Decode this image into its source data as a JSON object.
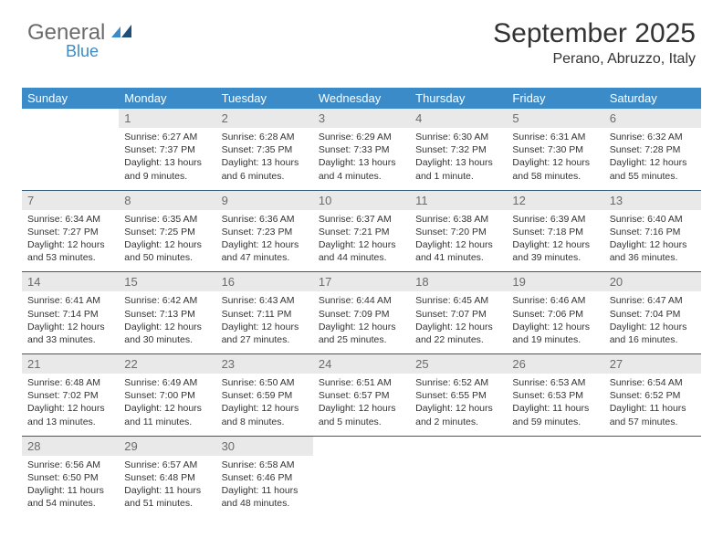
{
  "brand": {
    "main": "General",
    "sub": "Blue"
  },
  "title": "September 2025",
  "location": "Perano, Abruzzo, Italy",
  "colors": {
    "header_bg": "#3b8bc9",
    "header_text": "#ffffff",
    "daynum_bg": "#e9e9e9",
    "daynum_text": "#6b6b6b",
    "body_text": "#333333",
    "separator": "#355a7a",
    "logo_gray": "#6b6b6b",
    "logo_blue": "#3b8bc9"
  },
  "day_names": [
    "Sunday",
    "Monday",
    "Tuesday",
    "Wednesday",
    "Thursday",
    "Friday",
    "Saturday"
  ],
  "weeks": [
    {
      "nums": [
        "",
        "1",
        "2",
        "3",
        "4",
        "5",
        "6"
      ],
      "cells": [
        {
          "empty": true
        },
        {
          "sunrise": "Sunrise: 6:27 AM",
          "sunset": "Sunset: 7:37 PM",
          "day1": "Daylight: 13 hours",
          "day2": "and 9 minutes."
        },
        {
          "sunrise": "Sunrise: 6:28 AM",
          "sunset": "Sunset: 7:35 PM",
          "day1": "Daylight: 13 hours",
          "day2": "and 6 minutes."
        },
        {
          "sunrise": "Sunrise: 6:29 AM",
          "sunset": "Sunset: 7:33 PM",
          "day1": "Daylight: 13 hours",
          "day2": "and 4 minutes."
        },
        {
          "sunrise": "Sunrise: 6:30 AM",
          "sunset": "Sunset: 7:32 PM",
          "day1": "Daylight: 13 hours",
          "day2": "and 1 minute."
        },
        {
          "sunrise": "Sunrise: 6:31 AM",
          "sunset": "Sunset: 7:30 PM",
          "day1": "Daylight: 12 hours",
          "day2": "and 58 minutes."
        },
        {
          "sunrise": "Sunrise: 6:32 AM",
          "sunset": "Sunset: 7:28 PM",
          "day1": "Daylight: 12 hours",
          "day2": "and 55 minutes."
        }
      ]
    },
    {
      "nums": [
        "7",
        "8",
        "9",
        "10",
        "11",
        "12",
        "13"
      ],
      "cells": [
        {
          "sunrise": "Sunrise: 6:34 AM",
          "sunset": "Sunset: 7:27 PM",
          "day1": "Daylight: 12 hours",
          "day2": "and 53 minutes."
        },
        {
          "sunrise": "Sunrise: 6:35 AM",
          "sunset": "Sunset: 7:25 PM",
          "day1": "Daylight: 12 hours",
          "day2": "and 50 minutes."
        },
        {
          "sunrise": "Sunrise: 6:36 AM",
          "sunset": "Sunset: 7:23 PM",
          "day1": "Daylight: 12 hours",
          "day2": "and 47 minutes."
        },
        {
          "sunrise": "Sunrise: 6:37 AM",
          "sunset": "Sunset: 7:21 PM",
          "day1": "Daylight: 12 hours",
          "day2": "and 44 minutes."
        },
        {
          "sunrise": "Sunrise: 6:38 AM",
          "sunset": "Sunset: 7:20 PM",
          "day1": "Daylight: 12 hours",
          "day2": "and 41 minutes."
        },
        {
          "sunrise": "Sunrise: 6:39 AM",
          "sunset": "Sunset: 7:18 PM",
          "day1": "Daylight: 12 hours",
          "day2": "and 39 minutes."
        },
        {
          "sunrise": "Sunrise: 6:40 AM",
          "sunset": "Sunset: 7:16 PM",
          "day1": "Daylight: 12 hours",
          "day2": "and 36 minutes."
        }
      ]
    },
    {
      "nums": [
        "14",
        "15",
        "16",
        "17",
        "18",
        "19",
        "20"
      ],
      "cells": [
        {
          "sunrise": "Sunrise: 6:41 AM",
          "sunset": "Sunset: 7:14 PM",
          "day1": "Daylight: 12 hours",
          "day2": "and 33 minutes."
        },
        {
          "sunrise": "Sunrise: 6:42 AM",
          "sunset": "Sunset: 7:13 PM",
          "day1": "Daylight: 12 hours",
          "day2": "and 30 minutes."
        },
        {
          "sunrise": "Sunrise: 6:43 AM",
          "sunset": "Sunset: 7:11 PM",
          "day1": "Daylight: 12 hours",
          "day2": "and 27 minutes."
        },
        {
          "sunrise": "Sunrise: 6:44 AM",
          "sunset": "Sunset: 7:09 PM",
          "day1": "Daylight: 12 hours",
          "day2": "and 25 minutes."
        },
        {
          "sunrise": "Sunrise: 6:45 AM",
          "sunset": "Sunset: 7:07 PM",
          "day1": "Daylight: 12 hours",
          "day2": "and 22 minutes."
        },
        {
          "sunrise": "Sunrise: 6:46 AM",
          "sunset": "Sunset: 7:06 PM",
          "day1": "Daylight: 12 hours",
          "day2": "and 19 minutes."
        },
        {
          "sunrise": "Sunrise: 6:47 AM",
          "sunset": "Sunset: 7:04 PM",
          "day1": "Daylight: 12 hours",
          "day2": "and 16 minutes."
        }
      ]
    },
    {
      "nums": [
        "21",
        "22",
        "23",
        "24",
        "25",
        "26",
        "27"
      ],
      "cells": [
        {
          "sunrise": "Sunrise: 6:48 AM",
          "sunset": "Sunset: 7:02 PM",
          "day1": "Daylight: 12 hours",
          "day2": "and 13 minutes."
        },
        {
          "sunrise": "Sunrise: 6:49 AM",
          "sunset": "Sunset: 7:00 PM",
          "day1": "Daylight: 12 hours",
          "day2": "and 11 minutes."
        },
        {
          "sunrise": "Sunrise: 6:50 AM",
          "sunset": "Sunset: 6:59 PM",
          "day1": "Daylight: 12 hours",
          "day2": "and 8 minutes."
        },
        {
          "sunrise": "Sunrise: 6:51 AM",
          "sunset": "Sunset: 6:57 PM",
          "day1": "Daylight: 12 hours",
          "day2": "and 5 minutes."
        },
        {
          "sunrise": "Sunrise: 6:52 AM",
          "sunset": "Sunset: 6:55 PM",
          "day1": "Daylight: 12 hours",
          "day2": "and 2 minutes."
        },
        {
          "sunrise": "Sunrise: 6:53 AM",
          "sunset": "Sunset: 6:53 PM",
          "day1": "Daylight: 11 hours",
          "day2": "and 59 minutes."
        },
        {
          "sunrise": "Sunrise: 6:54 AM",
          "sunset": "Sunset: 6:52 PM",
          "day1": "Daylight: 11 hours",
          "day2": "and 57 minutes."
        }
      ]
    },
    {
      "nums": [
        "28",
        "29",
        "30",
        "",
        "",
        "",
        ""
      ],
      "cells": [
        {
          "sunrise": "Sunrise: 6:56 AM",
          "sunset": "Sunset: 6:50 PM",
          "day1": "Daylight: 11 hours",
          "day2": "and 54 minutes."
        },
        {
          "sunrise": "Sunrise: 6:57 AM",
          "sunset": "Sunset: 6:48 PM",
          "day1": "Daylight: 11 hours",
          "day2": "and 51 minutes."
        },
        {
          "sunrise": "Sunrise: 6:58 AM",
          "sunset": "Sunset: 6:46 PM",
          "day1": "Daylight: 11 hours",
          "day2": "and 48 minutes."
        },
        {
          "empty": true
        },
        {
          "empty": true
        },
        {
          "empty": true
        },
        {
          "empty": true
        }
      ]
    }
  ]
}
